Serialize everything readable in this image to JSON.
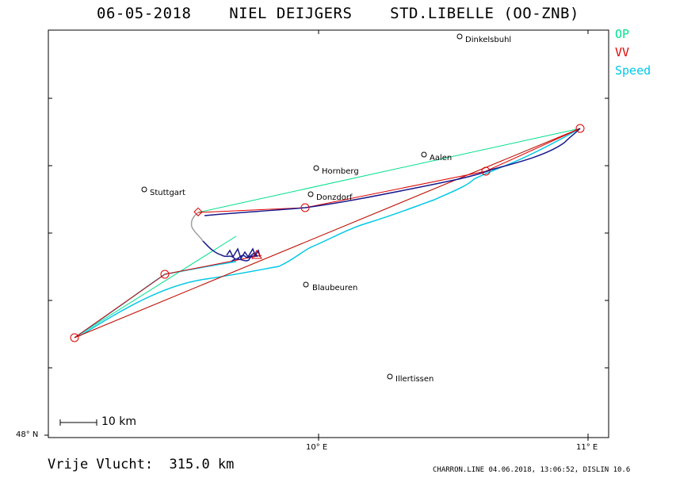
{
  "header": {
    "title": "06-05-2018    NIEL DEIJGERS    STD.LIBELLE (OO-ZNB)"
  },
  "legend": [
    {
      "label": "OP",
      "color": "#00e08c"
    },
    {
      "label": "VV",
      "color": "#e00000"
    },
    {
      "label": "Speed",
      "color": "#00c8e6"
    }
  ],
  "axes": {
    "lat_label": "48° N",
    "lon_labels": [
      "10° E",
      "11° E"
    ]
  },
  "scale_bar": {
    "label": "10 km"
  },
  "cities": [
    {
      "name": "Dinkelsbuhl"
    },
    {
      "name": "Aalen"
    },
    {
      "name": "Hornberg"
    },
    {
      "name": "Stuttgart"
    },
    {
      "name": "Donzdorf"
    },
    {
      "name": "Blaubeuren"
    },
    {
      "name": "Illertissen"
    }
  ],
  "distance_text": "Vrije Vlucht:  315.0 km",
  "footer_text": "CHARRON.LINE 04.06.2018, 13:06:52, DISLIN 10.6",
  "colors": {
    "track": "#1a1a8c",
    "speed": "#00c8e6",
    "op": "#00e08c",
    "vv": "#e00000",
    "frame": "#000000",
    "start_trace": "#a0a0a0"
  }
}
